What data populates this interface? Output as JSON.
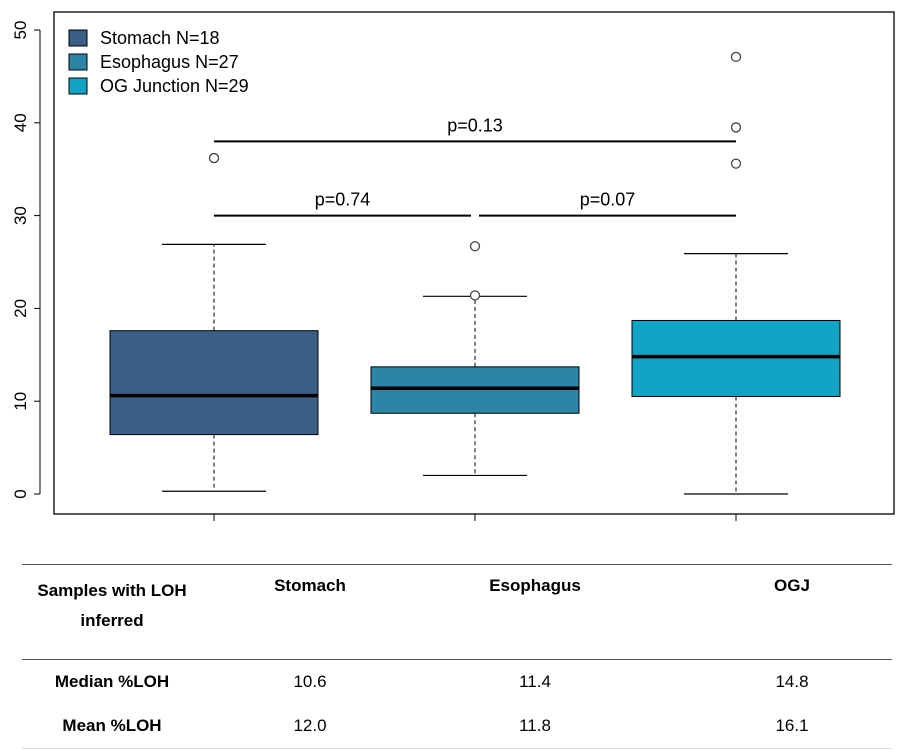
{
  "chart_data": {
    "type": "box",
    "ylim": [
      0,
      50
    ],
    "yticks": [
      0,
      10,
      20,
      30,
      40,
      50
    ],
    "grid": false,
    "legend_position": "top-left",
    "series": [
      {
        "name": "Stomach N=18",
        "color": "#3a5f86",
        "whisker_low": 0.3,
        "q1": 6.4,
        "median": 10.6,
        "q3": 17.6,
        "whisker_high": 26.9,
        "outliers": [
          36.2
        ]
      },
      {
        "name": "Esophagus N=27",
        "color": "#2a85a6",
        "whisker_low": 2.0,
        "q1": 8.7,
        "median": 11.4,
        "q3": 13.7,
        "whisker_high": 21.3,
        "outliers": [
          21.4,
          26.7
        ]
      },
      {
        "name": "OG Junction N=29",
        "color": "#0fa3c4",
        "whisker_low": 0.0,
        "q1": 10.5,
        "median": 14.8,
        "q3": 18.7,
        "whisker_high": 25.9,
        "outliers": [
          35.6,
          39.5,
          47.1
        ]
      }
    ],
    "comparisons": [
      {
        "from": 0,
        "to": 2,
        "y": 38,
        "label": "p=0.13"
      },
      {
        "from": 0,
        "to": 1,
        "y": 30,
        "label": "p=0.74"
      },
      {
        "from": 1,
        "to": 2,
        "y": 30,
        "label": "p=0.07"
      }
    ]
  },
  "table": {
    "header_label_line1": "Samples with LOH",
    "header_label_line2": "inferred",
    "columns": [
      "Stomach",
      "Esophagus",
      "OGJ"
    ],
    "rows": [
      {
        "label": "Median %LOH",
        "values": [
          "10.6",
          "11.4",
          "14.8"
        ]
      },
      {
        "label": "Mean %LOH",
        "values": [
          "12.0",
          "11.8",
          "16.1"
        ]
      }
    ]
  }
}
